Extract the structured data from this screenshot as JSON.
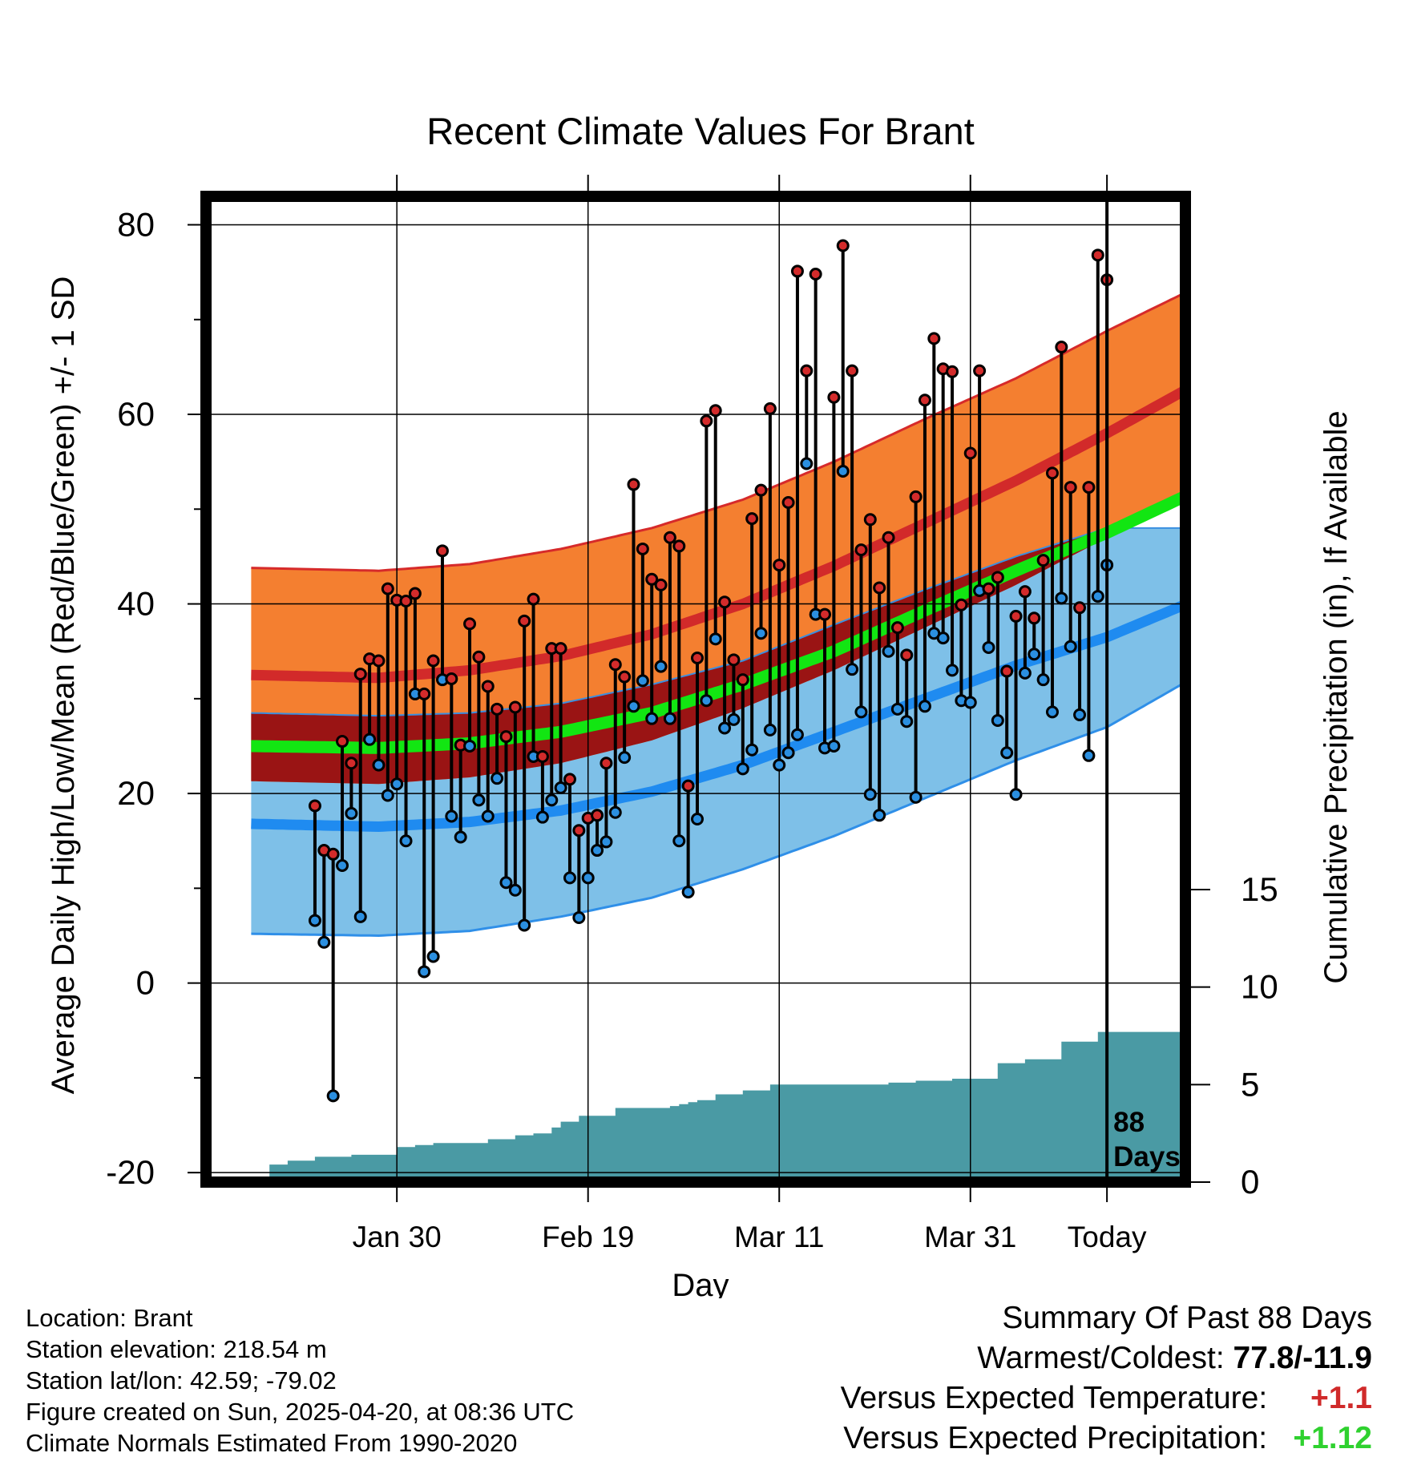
{
  "chart_data": {
    "type": "line",
    "title": "Recent Climate Values For Brant",
    "xlabel": "Day",
    "ylabel": "Average Daily High/Low/Mean (Red/Blue/Green) +/- 1 SD",
    "y2label": "Cumulative Precipitation (in), If Available",
    "x_range_days": [
      -98,
      8
    ],
    "ylim": [
      -21,
      83
    ],
    "y2lim": [
      0,
      20
    ],
    "x_ticks": [
      {
        "day": -78,
        "label": "Jan 30"
      },
      {
        "day": -57,
        "label": "Feb 19"
      },
      {
        "day": -36,
        "label": "Mar 11"
      },
      {
        "day": -15,
        "label": "Mar 31"
      },
      {
        "day": 0,
        "label": "Today"
      }
    ],
    "y_ticks": [
      -20,
      0,
      20,
      40,
      60,
      80
    ],
    "y2_ticks": [
      0,
      5,
      10,
      15
    ],
    "today_label": "88",
    "today_label2": "Days",
    "normals": {
      "days": [
        -94,
        -80,
        -70,
        -60,
        -50,
        -40,
        -30,
        -20,
        -10,
        0,
        10
      ],
      "high_mean": [
        32.5,
        32.2,
        33.0,
        34.5,
        36.8,
        40.0,
        44.0,
        48.5,
        53.0,
        58.0,
        63.3
      ],
      "high_upper": [
        43.8,
        43.5,
        44.2,
        45.8,
        48.0,
        51.0,
        55.0,
        59.5,
        63.8,
        68.8,
        73.5
      ],
      "high_lower": [
        21.3,
        21.0,
        21.7,
        23.2,
        25.6,
        29.0,
        33.0,
        37.5,
        42.0,
        47.0,
        52.0
      ],
      "low_mean": [
        16.8,
        16.5,
        17.0,
        18.2,
        20.2,
        23.0,
        26.5,
        30.0,
        33.5,
        36.5,
        40.5
      ],
      "low_upper": [
        28.5,
        28.2,
        28.5,
        29.5,
        31.5,
        34.0,
        37.8,
        41.5,
        45.0,
        48.0,
        48.0
      ],
      "low_lower": [
        5.2,
        5.0,
        5.5,
        7.0,
        9.0,
        12.0,
        15.5,
        19.5,
        23.5,
        27.0,
        32.5
      ],
      "mean": [
        25.0,
        24.8,
        25.3,
        26.5,
        28.5,
        31.5,
        35.0,
        39.3,
        43.5,
        47.5,
        52.0
      ]
    },
    "series": [
      {
        "name": "High",
        "color": "#d32b2b",
        "values": [
          18.7,
          14.0,
          13.6,
          25.5,
          23.2,
          32.6,
          34.2,
          34.0,
          41.6,
          40.4,
          40.3,
          41.1,
          30.5,
          34.0,
          45.6,
          32.1,
          25.1,
          37.9,
          34.4,
          31.3,
          28.9,
          26.0,
          29.1,
          38.2,
          40.5,
          23.9,
          35.3,
          35.3,
          21.5,
          16.1,
          17.4,
          17.7,
          23.2,
          33.6,
          32.3,
          52.6,
          45.8,
          42.6,
          42.0,
          47.0,
          46.1,
          20.8,
          34.3,
          59.3,
          60.4,
          40.2,
          34.1,
          32.0,
          49.0,
          52.0,
          60.6,
          44.1,
          50.7,
          75.1,
          64.6,
          74.8,
          38.9,
          61.8,
          77.8,
          64.6,
          45.7,
          48.9,
          41.7,
          47.0,
          37.5,
          34.6,
          51.3,
          61.5,
          68.0,
          64.8,
          64.5,
          39.9,
          55.9,
          64.6,
          41.6,
          42.8,
          32.9,
          38.7,
          41.3,
          38.5,
          44.6,
          53.8,
          67.1,
          52.3,
          39.6,
          52.3,
          76.8,
          74.2
        ]
      },
      {
        "name": "Low",
        "color": "#2b8fe0",
        "values": [
          6.6,
          4.3,
          -11.9,
          12.4,
          17.9,
          7.0,
          25.7,
          23.0,
          19.8,
          21.0,
          15.0,
          30.5,
          1.2,
          2.8,
          32.0,
          17.6,
          15.4,
          25.0,
          19.3,
          17.6,
          21.6,
          10.6,
          9.8,
          6.1,
          23.9,
          17.5,
          19.3,
          20.6,
          11.1,
          6.9,
          11.1,
          14.0,
          14.9,
          18.0,
          23.8,
          29.2,
          31.9,
          27.9,
          33.4,
          27.9,
          15.0,
          9.6,
          17.3,
          29.8,
          36.3,
          26.9,
          27.8,
          22.6,
          24.6,
          36.9,
          26.7,
          23.0,
          24.3,
          26.2,
          54.8,
          38.9,
          24.8,
          25.0,
          54.0,
          33.1,
          28.6,
          19.9,
          17.7,
          35.0,
          28.9,
          27.6,
          19.6,
          29.2,
          36.9,
          36.4,
          33.0,
          29.8,
          29.6,
          41.4,
          35.4,
          27.7,
          24.3,
          19.9,
          32.7,
          34.7,
          32.0,
          28.6,
          40.6,
          35.5,
          28.3,
          24.0,
          40.8,
          44.1
        ]
      },
      {
        "name": "Cumulative Precipitation",
        "color": "#4a9aa4",
        "days": [
          -93,
          -92,
          -90,
          -87,
          -83,
          -80,
          -78,
          -76,
          -74,
          -71,
          -68,
          -65,
          -63,
          -61,
          -60,
          -58,
          -54,
          -51,
          -48,
          -47,
          -46,
          -45,
          -43,
          -41,
          -40,
          -37,
          -34,
          -31,
          -26,
          -24,
          -21,
          -19,
          -17,
          -15,
          -14,
          -12,
          -9,
          -5,
          -1,
          10
        ],
        "values": [
          0.0,
          0.9,
          1.1,
          1.3,
          1.4,
          1.4,
          1.8,
          1.9,
          2.0,
          2.0,
          2.2,
          2.4,
          2.5,
          2.8,
          3.1,
          3.4,
          3.8,
          3.8,
          3.9,
          4.0,
          4.1,
          4.2,
          4.5,
          4.5,
          4.7,
          5.0,
          5.0,
          5.0,
          5.0,
          5.1,
          5.2,
          5.2,
          5.3,
          5.3,
          5.3,
          6.1,
          6.3,
          7.2,
          7.7,
          8.3
        ]
      }
    ]
  },
  "footer": {
    "location": "Location: Brant",
    "elevation": "Station elevation: 218.54 m",
    "latlon": "Station lat/lon: 42.59; -79.02",
    "created": "Figure created on Sun, 2025-04-20, at 08:36 UTC",
    "normals": "Climate Normals Estimated From 1990-2020"
  },
  "summary": {
    "heading": "Summary Of Past 88 Days",
    "warm_cold_label": "Warmest/Coldest:",
    "warm_cold_value": "77.8/-11.9",
    "temp_label": "Versus Expected Temperature:",
    "temp_value": "+1.1",
    "temp_color": "#d02a2a",
    "precip_label": "Versus Expected Precipitation:",
    "precip_value": "+1.12",
    "precip_color": "#2fd12f"
  }
}
